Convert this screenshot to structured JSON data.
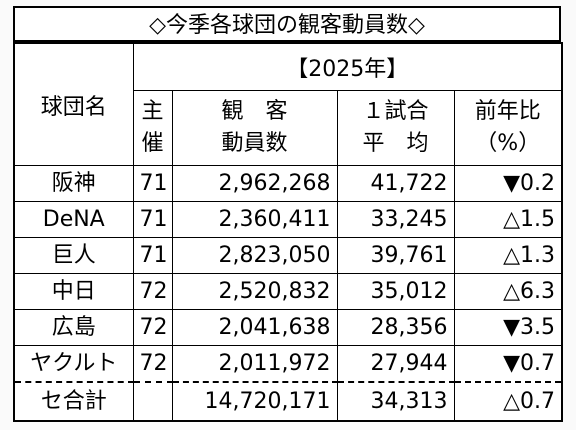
{
  "title": "◇今季各球団の観客動員数◇",
  "header": {
    "team": "球団名",
    "year": "【2025年】",
    "games_1": "主",
    "games_2": "催",
    "att_1": "観　客",
    "att_2": "動員数",
    "avg_1": "１試合",
    "avg_2": "平　均",
    "ratio_1": "前年比",
    "ratio_2": "（%）"
  },
  "rows": [
    {
      "team": "阪神",
      "games": "71",
      "attendance": "2,962,268",
      "average": "41,722",
      "ratio": "▼0.2"
    },
    {
      "team": "DeNA",
      "games": "71",
      "attendance": "2,360,411",
      "average": "33,245",
      "ratio": "△1.5"
    },
    {
      "team": "巨人",
      "games": "71",
      "attendance": "2,823,050",
      "average": "39,761",
      "ratio": "△1.3"
    },
    {
      "team": "中日",
      "games": "72",
      "attendance": "2,520,832",
      "average": "35,012",
      "ratio": "△6.3"
    },
    {
      "team": "広島",
      "games": "72",
      "attendance": "2,041,638",
      "average": "28,356",
      "ratio": "▼3.5"
    },
    {
      "team": "ヤクルト",
      "games": "72",
      "attendance": "2,011,972",
      "average": "27,944",
      "ratio": "▼0.7"
    }
  ],
  "total": {
    "team": "セ合計",
    "games": "",
    "attendance": "14,720,171",
    "average": "34,313",
    "ratio": "△0.7"
  }
}
